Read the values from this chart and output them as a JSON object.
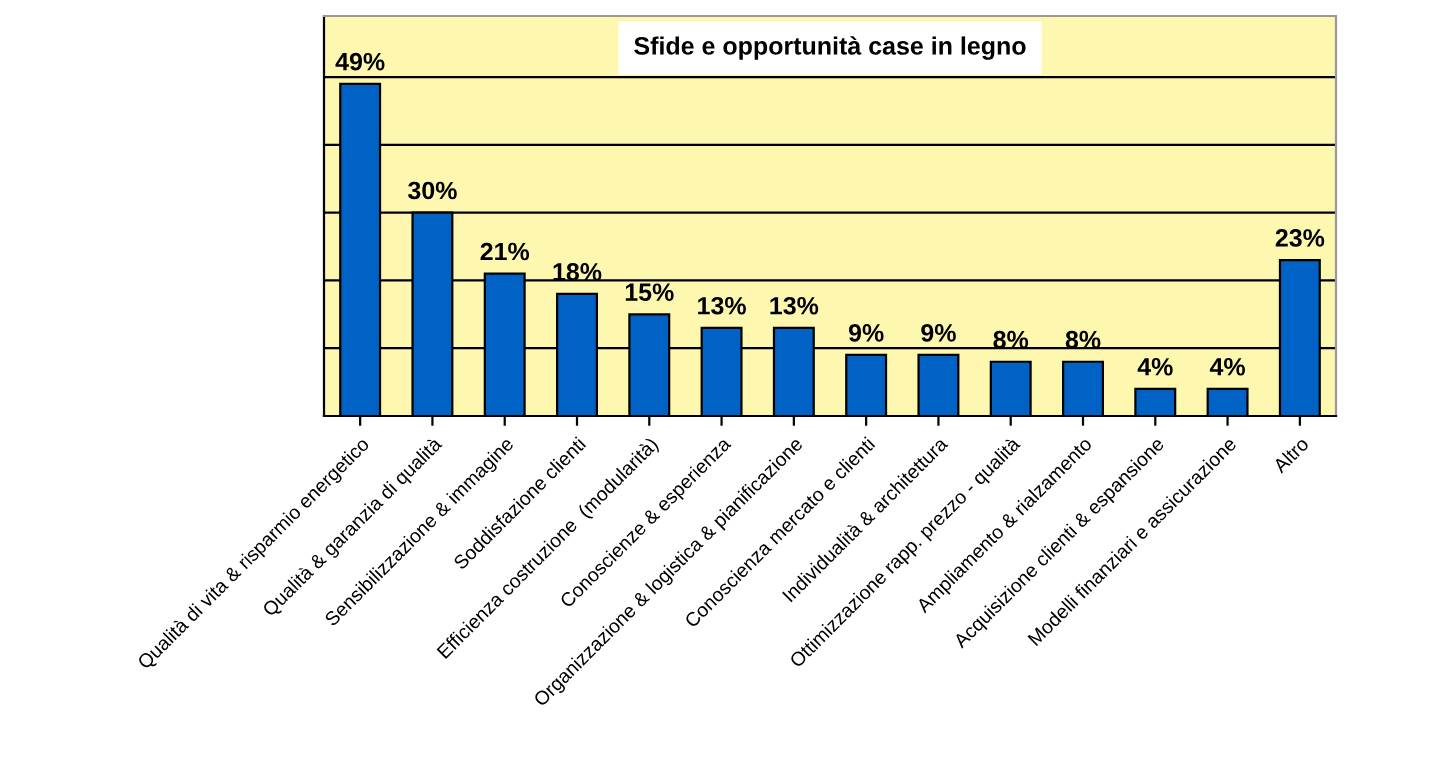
{
  "chart_data": {
    "type": "bar",
    "title": "Sfide e opportunità case in legno",
    "categories": [
      "Qualità di vita & risparmio energetico",
      "Qualità & garanzia di qualità",
      "Sensibilizzazione & immagine",
      "Soddisfazione clienti",
      "Efficienza costruzione  (modularità)",
      "Conoscienze & esperienza",
      "Organizzazione & logistica & pianificazione",
      "Conoscienza mercato e clienti",
      "Individualità & architettura",
      "Ottimizzazione rapp. prezzo - qualità",
      "Ampliamento & rialzamento",
      "Acquisizione clienti & espansione",
      "Modelli finanziari e assicurazione",
      "Altro"
    ],
    "values": [
      49,
      30,
      21,
      18,
      15,
      13,
      13,
      9,
      9,
      8,
      8,
      4,
      4,
      23
    ],
    "value_labels": [
      "49%",
      "30%",
      "21%",
      "18%",
      "15%",
      "13%",
      "13%",
      "9%",
      "9%",
      "8%",
      "8%",
      "4%",
      "4%",
      "23%"
    ],
    "color": "#0062c4",
    "ylim": [
      0,
      59
    ],
    "yticks": [
      {
        "value": 0,
        "label": null
      },
      {
        "value": 10,
        "label": null
      },
      {
        "value": 20,
        "label": null
      },
      {
        "value": 30,
        "label": null
      },
      {
        "value": 40,
        "label": null
      },
      {
        "value": 50,
        "label": null
      }
    ],
    "grid": "y",
    "tick_labels": "x",
    "legend": false
  }
}
